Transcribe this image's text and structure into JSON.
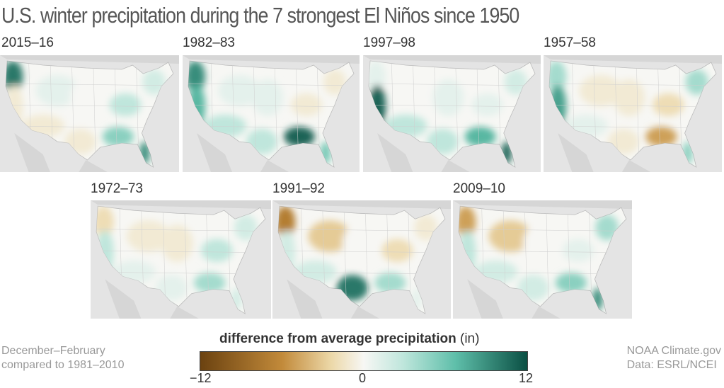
{
  "title": "U.S. winter precipitation during the 7 strongest El Niños since 1950",
  "colors": {
    "dry_max": "#6b4210",
    "dry": "#c28a3a",
    "dry_light": "#ecd8a8",
    "neutral": "#f7f7f4",
    "wet_light": "#bfe6dc",
    "wet": "#5fbfaa",
    "wet_max": "#0a4f43",
    "land_gray": "#d6d6d6"
  },
  "maps": [
    {
      "label": "2015–16",
      "regions": {
        "pacific_nw": 10,
        "california": -1,
        "southwest": -1,
        "rockies": 1,
        "plains": 0,
        "texas": -1,
        "gulf": 5,
        "florida": 9,
        "ohio_valley": 3,
        "northeast": 2
      }
    },
    {
      "label": "1982–83",
      "regions": {
        "pacific_nw": 9,
        "california": 7,
        "southwest": 3,
        "rockies": 1,
        "plains": 1,
        "texas": 3,
        "gulf": 11,
        "florida": 6,
        "ohio_valley": -1,
        "northeast": -1
      }
    },
    {
      "label": "1997–98",
      "regions": {
        "pacific_nw": 1,
        "california": 11,
        "southwest": 3,
        "rockies": 0,
        "plains": 1,
        "texas": 3,
        "gulf": 7,
        "florida": 11,
        "ohio_valley": 1,
        "northeast": 2
      }
    },
    {
      "label": "1957–58",
      "regions": {
        "pacific_nw": 4,
        "california": 8,
        "southwest": 1,
        "rockies": -1,
        "plains": -1,
        "texas": -1,
        "gulf": -5,
        "florida": 5,
        "ohio_valley": -2,
        "northeast": 4
      }
    },
    {
      "label": "1972–73",
      "regions": {
        "pacific_nw": -2,
        "california": 3,
        "southwest": 1,
        "rockies": -1,
        "plains": -1,
        "texas": 1,
        "gulf": 4,
        "florida": 2,
        "ohio_valley": 3,
        "northeast": 2
      }
    },
    {
      "label": "1991–92",
      "regions": {
        "pacific_nw": -7,
        "california": 2,
        "southwest": 2,
        "rockies": -3,
        "plains": 0,
        "texas": 10,
        "gulf": 4,
        "florida": 1,
        "ohio_valley": -2,
        "northeast": -1
      }
    },
    {
      "label": "2009–10",
      "regions": {
        "pacific_nw": -5,
        "california": 3,
        "southwest": 2,
        "rockies": -3,
        "plains": 0,
        "texas": 2,
        "gulf": 5,
        "florida": 9,
        "ohio_valley": 1,
        "northeast": 4
      }
    }
  ],
  "legend": {
    "title": "difference from average precipitation",
    "unit": "(in)",
    "min": -12,
    "mid": 0,
    "max": 12,
    "min_label": "−12",
    "mid_label": "0",
    "max_label": "12"
  },
  "note_left": [
    "December–February",
    "compared to 1981–2010"
  ],
  "note_right": [
    "NOAA Climate.gov",
    "Data: ESRL/NCEI"
  ]
}
